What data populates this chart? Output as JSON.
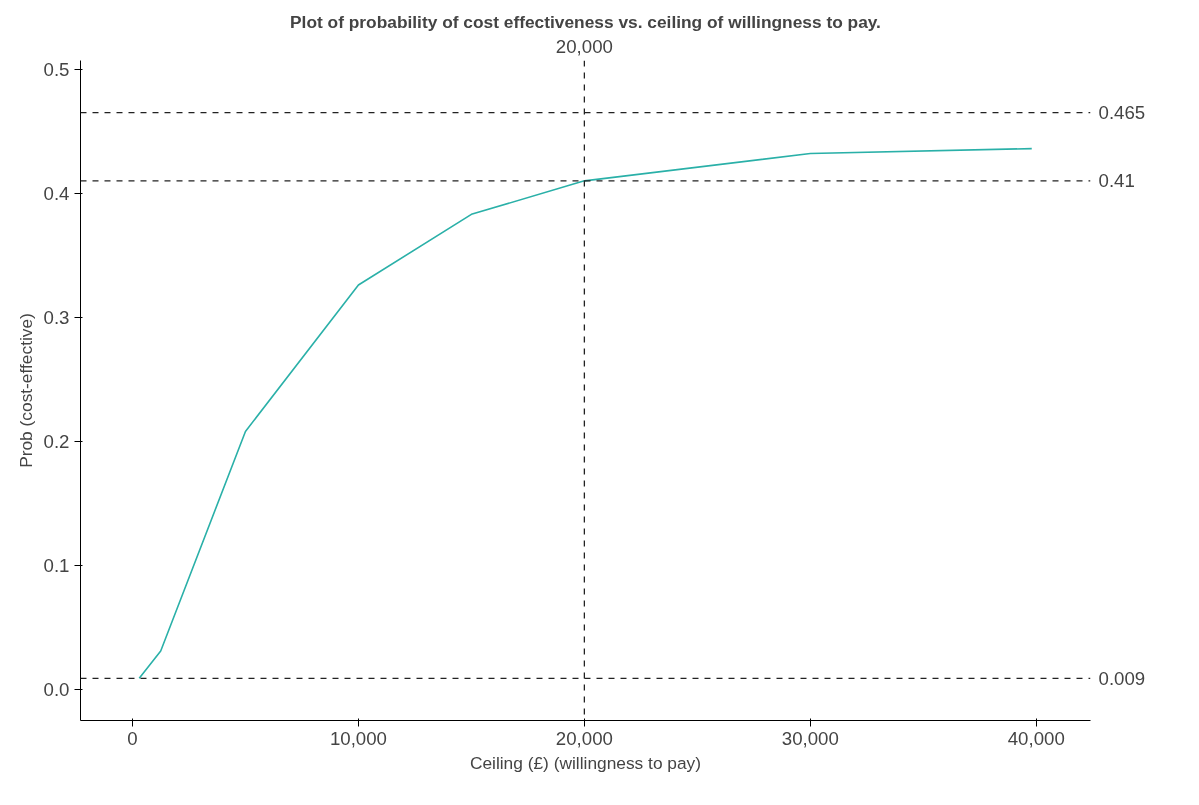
{
  "chart_data": {
    "type": "line",
    "title": "Plot of probability of cost effectiveness vs. ceiling of willingness to pay.",
    "xlabel": "Ceiling (£) (willingness to pay)",
    "ylabel": "Prob (cost-effective)",
    "x": [
      300,
      1250,
      5000,
      10000,
      15000,
      20000,
      30000,
      39800
    ],
    "series": [
      {
        "color": "#2ab0a8",
        "values": [
          0.009,
          0.031,
          0.208,
          0.326,
          0.383,
          0.41,
          0.432,
          0.436
        ]
      }
    ],
    "xlim": [
      -2300,
      42400
    ],
    "ylim": [
      -0.025,
      0.507
    ],
    "xticks": [
      {
        "value": 0,
        "label": "0"
      },
      {
        "value": 10000,
        "label": "10,000"
      },
      {
        "value": 20000,
        "label": "20,000"
      },
      {
        "value": 30000,
        "label": "30,000"
      },
      {
        "value": 40000,
        "label": "40,000"
      }
    ],
    "yticks": [
      {
        "value": 0,
        "label": "0.0"
      },
      0.1,
      0.2,
      0.3,
      0.4,
      0.5
    ],
    "ref_lines": [
      {
        "axis": "y",
        "value": 0.465,
        "label": "0.465",
        "line_style": "dashed"
      },
      {
        "axis": "y",
        "value": 0.41,
        "label": "0.41",
        "line_style": "dashed"
      },
      {
        "axis": "y",
        "value": 0.009,
        "label": "0.009",
        "line_style": "dashed"
      },
      {
        "axis": "x",
        "value": 20000,
        "label": "20,000",
        "line_style": "dashed"
      }
    ],
    "grid": false,
    "line_style": "solid",
    "marker": "none"
  }
}
